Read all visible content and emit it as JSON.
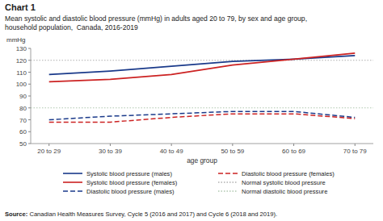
{
  "chart_data": {
    "type": "line",
    "title": "Chart 1",
    "subtitle": [
      "Mean systolic and diastolic blood pressure (mmHg) in adults aged 20 to 79, by sex and age group,",
      "household population,  Canada, 2016-2019"
    ],
    "source": [
      "Source:",
      " Canadian Health Measures Survey, Cycle 5 (2016 and 2017) and Cycle 6 (2018 and 2019)."
    ],
    "x_label": "age group",
    "y_label": "mmHg",
    "categories": [
      "20 to 29",
      "30 to 39",
      "40 to 49",
      "50 to 59",
      "60 to 69",
      "70 to 79"
    ],
    "series": [
      {
        "name": "Systolic blood pressure (males)",
        "color": "#1a3a8a",
        "line_style": "solid",
        "values": [
          108,
          111,
          115,
          119,
          121,
          124
        ]
      },
      {
        "name": "Systolic blood pressure (females)",
        "color": "#cc2222",
        "line_style": "solid",
        "values": [
          102,
          104,
          108,
          116,
          121,
          126
        ]
      },
      {
        "name": "Diastolic blood pressure (males)",
        "color": "#1a3a8a",
        "line_style": "dashed",
        "values": [
          70,
          73,
          75,
          77,
          77,
          72
        ]
      },
      {
        "name": "Diastolic blood pressure (females)",
        "color": "#cc2222",
        "line_style": "dashed",
        "values": [
          68,
          68,
          72,
          75,
          75,
          71
        ]
      }
    ],
    "reference_lines": [
      {
        "name": "Normal systolic blood pressure",
        "value": 120,
        "color": "#b0b0b0",
        "line_style": "dotted"
      },
      {
        "name": "Normal diastolic blood pressure",
        "value": 80,
        "color": "#b0c8b0",
        "line_style": "dotted"
      }
    ],
    "ylim": [
      50,
      130
    ],
    "yticks": [
      50,
      60,
      70,
      80,
      90,
      100,
      110,
      120,
      130
    ],
    "grid": false,
    "legend": "bottom"
  }
}
